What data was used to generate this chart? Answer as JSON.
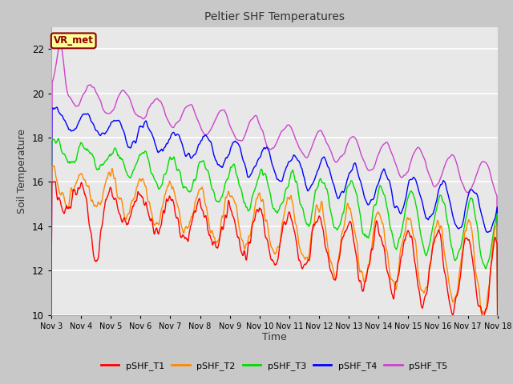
{
  "title": "Peltier SHF Temperatures",
  "xlabel": "Time",
  "ylabel": "Soil Temperature",
  "ylim": [
    10,
    23
  ],
  "yticks": [
    10,
    12,
    14,
    16,
    18,
    20,
    22
  ],
  "xtick_labels": [
    "Nov 3",
    "Nov 4",
    "Nov 5",
    "Nov 6",
    "Nov 7",
    "Nov 8",
    "Nov 9",
    "Nov 10",
    "Nov 11",
    "Nov 12",
    "Nov 13",
    "Nov 14",
    "Nov 15",
    "Nov 16",
    "Nov 17",
    "Nov 18"
  ],
  "fig_bg_color": "#c8c8c8",
  "plot_bg_color": "#e8e8e8",
  "annotation_text": "VR_met",
  "annotation_color": "#8b0000",
  "annotation_bg": "#ffff99",
  "line_colors": {
    "pSHF_T1": "#ff0000",
    "pSHF_T2": "#ff8800",
    "pSHF_T3": "#00dd00",
    "pSHF_T4": "#0000ff",
    "pSHF_T5": "#cc44cc"
  },
  "legend_labels": [
    "pSHF_T1",
    "pSHF_T2",
    "pSHF_T3",
    "pSHF_T4",
    "pSHF_T5"
  ]
}
